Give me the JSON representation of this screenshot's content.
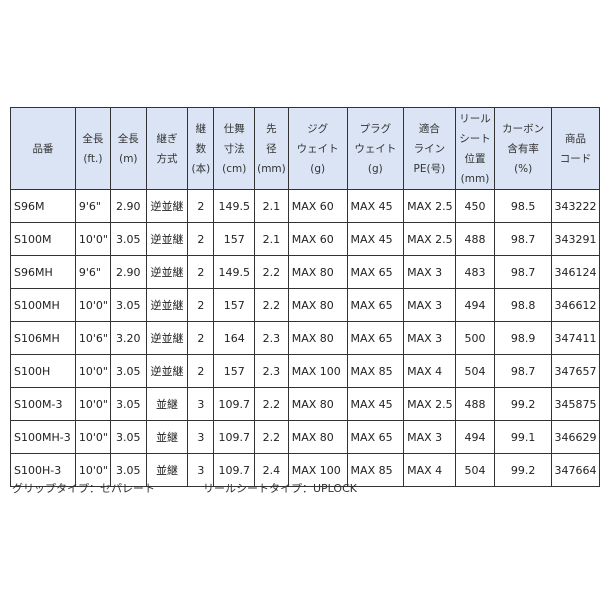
{
  "headers": [
    "品番",
    "全長\n(ft.)",
    "全長\n(m)",
    "継ぎ\n方式",
    "継\n数\n(本)",
    "仕舞\n寸法\n(cm)",
    "先\n径\n(mm)",
    "ジグ\nウェイト\n(g)",
    "プラグ\nウェイト\n(g)",
    "適合\nライン\nPE(号)",
    "リール\nシート\n位置\n(mm)",
    "カーボン\n含有率\n(%)",
    "商品\nコード"
  ],
  "rows": [
    [
      "S96M",
      "9'6\"",
      "2.90",
      "逆並継",
      "2",
      "149.5",
      "2.1",
      "MAX 60",
      "MAX 45",
      "MAX 2.5",
      "450",
      "98.5",
      "343222"
    ],
    [
      "S100M",
      "10'0\"",
      "3.05",
      "逆並継",
      "2",
      "157",
      "2.1",
      "MAX 60",
      "MAX 45",
      "MAX 2.5",
      "488",
      "98.7",
      "343291"
    ],
    [
      "S96MH",
      "9'6\"",
      "2.90",
      "逆並継",
      "2",
      "149.5",
      "2.2",
      "MAX 80",
      "MAX 65",
      "MAX 3",
      "483",
      "98.7",
      "346124"
    ],
    [
      "S100MH",
      "10'0\"",
      "3.05",
      "逆並継",
      "2",
      "157",
      "2.2",
      "MAX 80",
      "MAX 65",
      "MAX 3",
      "494",
      "98.8",
      "346612"
    ],
    [
      "S106MH",
      "10'6\"",
      "3.20",
      "逆並継",
      "2",
      "164",
      "2.3",
      "MAX 80",
      "MAX 65",
      "MAX 3",
      "500",
      "98.9",
      "347411"
    ],
    [
      "S100H",
      "10'0\"",
      "3.05",
      "逆並継",
      "2",
      "157",
      "2.3",
      "MAX 100",
      "MAX 85",
      "MAX 4",
      "504",
      "98.7",
      "347657"
    ],
    [
      "S100M-3",
      "10'0\"",
      "3.05",
      "並継",
      "3",
      "109.7",
      "2.2",
      "MAX 80",
      "MAX 45",
      "MAX 2.5",
      "488",
      "99.2",
      "345875"
    ],
    [
      "S100MH-3",
      "10'0\"",
      "3.05",
      "並継",
      "3",
      "109.7",
      "2.2",
      "MAX 80",
      "MAX 65",
      "MAX 3",
      "494",
      "99.1",
      "346629"
    ],
    [
      "S100H-3",
      "10'0\"",
      "3.05",
      "並継",
      "3",
      "109.7",
      "2.4",
      "MAX 100",
      "MAX 85",
      "MAX 4",
      "504",
      "99.2",
      "347664"
    ]
  ],
  "footer": {
    "grip": "グリップタイプ：セパレート",
    "reel_seat": "リールシートタイプ：UPLOCK"
  }
}
